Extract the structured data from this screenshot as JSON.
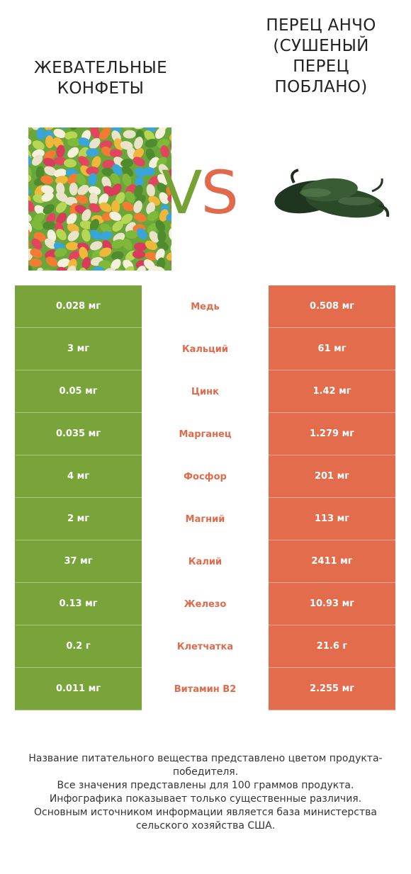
{
  "header": {
    "left_title": "ЖЕВАТЕЛЬНЫЕ КОНФЕТЫ",
    "right_title": "ПЕРЕЦ АНЧО (СУШЕНЫЙ ПЕРЕЦ ПОБЛАНО)",
    "vs_v": "V",
    "vs_s": "S"
  },
  "colors": {
    "left": "#78a43a",
    "right": "#e36c4c"
  },
  "rows": [
    {
      "left": "0.028 мг",
      "name": "Медь",
      "right": "0.508 мг"
    },
    {
      "left": "3 мг",
      "name": "Кальций",
      "right": "61 мг"
    },
    {
      "left": "0.05 мг",
      "name": "Цинк",
      "right": "1.42 мг"
    },
    {
      "left": "0.035 мг",
      "name": "Марганец",
      "right": "1.279 мг"
    },
    {
      "left": "4 мг",
      "name": "Фосфор",
      "right": "201 мг"
    },
    {
      "left": "2 мг",
      "name": "Магний",
      "right": "113 мг"
    },
    {
      "left": "37 мг",
      "name": "Калий",
      "right": "2411 мг"
    },
    {
      "left": "0.13 мг",
      "name": "Железо",
      "right": "10.93 мг"
    },
    {
      "left": "0.2 г",
      "name": "Клетчатка",
      "right": "21.6 г"
    },
    {
      "left": "0.011 мг",
      "name": "Витамин B2",
      "right": "2.255 мг"
    }
  ],
  "footer": {
    "line1": "Название питательного вещества представлено цветом продукта-победителя.",
    "line2": "Все значения представлены для 100 граммов продукта.",
    "line3": "Инфографика показывает только существенные различия.",
    "line4": "Основным источником информации является база министерства сельского хозяйства США."
  }
}
